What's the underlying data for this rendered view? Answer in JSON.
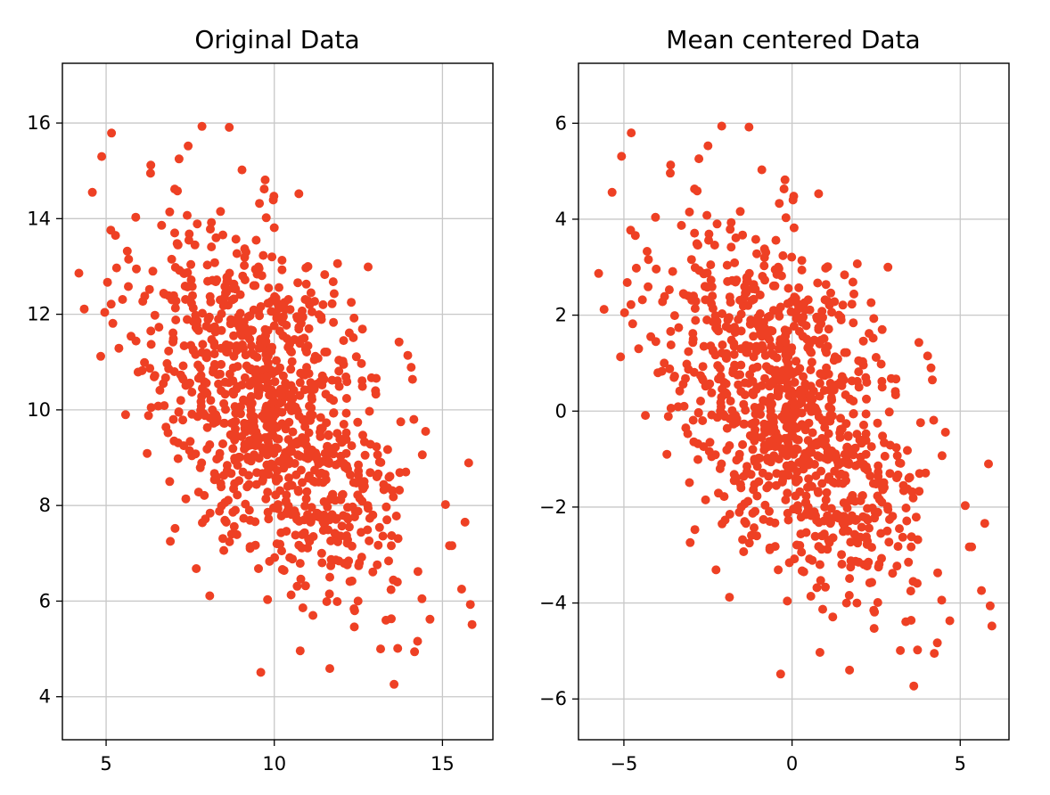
{
  "style": {
    "point_color": "#ee4024",
    "grid_color": "#c8c8c8",
    "grid": true,
    "marker": "filled-circle"
  },
  "chart_data": [
    {
      "type": "scatter",
      "title": "Original Data",
      "xlabel": "",
      "ylabel": "",
      "xlim": [
        3.7,
        16.5
      ],
      "ylim": [
        3.1,
        17.25
      ],
      "xticks": [
        5,
        10,
        15
      ],
      "xtick_labels": [
        "5",
        "10",
        "15"
      ],
      "yticks": [
        4,
        6,
        8,
        10,
        12,
        14,
        16
      ],
      "ytick_labels": [
        "4",
        "6",
        "8",
        "10",
        "12",
        "14",
        "16"
      ],
      "series": [
        {
          "x": [],
          "y": []
        }
      ]
    },
    {
      "type": "scatter",
      "title": "Mean centered Data",
      "xlabel": "",
      "ylabel": "",
      "xlim": [
        -6.35,
        6.45
      ],
      "ylim": [
        -6.85,
        7.25
      ],
      "xticks": [
        -5,
        0,
        5
      ],
      "xtick_labels": [
        "−5",
        "0",
        "5"
      ],
      "yticks": [
        -6,
        -4,
        -2,
        0,
        2,
        4,
        6
      ],
      "ytick_labels": [
        "−6",
        "−4",
        "−2",
        "0",
        "2",
        "4",
        "6"
      ],
      "series": [
        {
          "x": [],
          "y": []
        }
      ]
    }
  ]
}
